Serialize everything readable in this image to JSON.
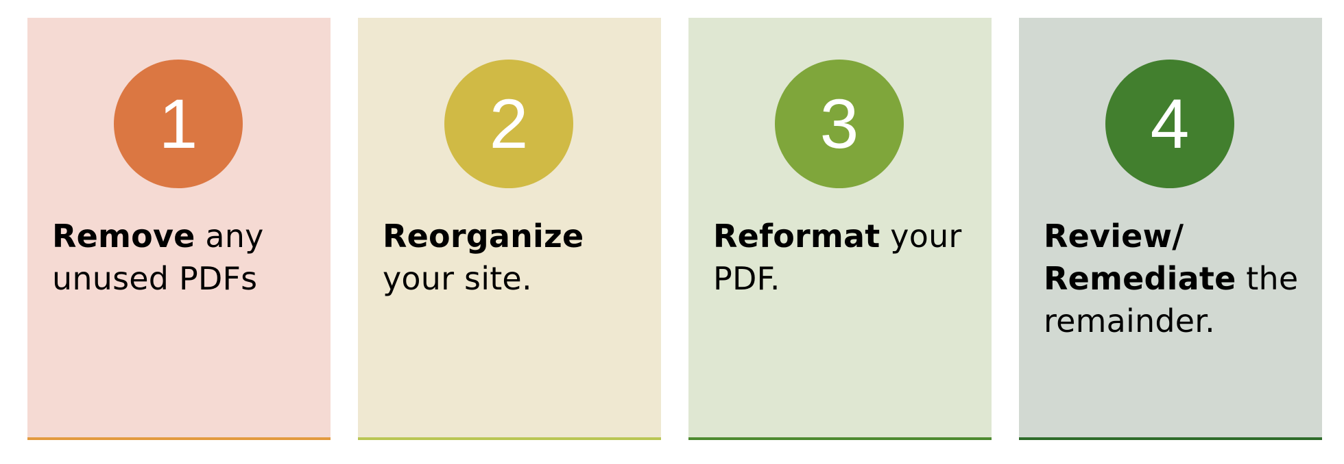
{
  "cards": [
    {
      "number": "1",
      "bold": "Remove",
      "rest": " any unused PDFs",
      "colors": {
        "background": "#F5DAD3",
        "badge": "#DB7742",
        "bar": "#E29A3F"
      }
    },
    {
      "number": "2",
      "bold": "Reorganize",
      "rest": " your site.",
      "colors": {
        "background": "#EFE8D1",
        "badge": "#D0BA45",
        "bar": "#B9C654"
      }
    },
    {
      "number": "3",
      "bold": "Reformat",
      "rest": " your PDF.",
      "colors": {
        "background": "#DFE7D2",
        "badge": "#7FA63B",
        "bar": "#4D8A30"
      }
    },
    {
      "number": "4",
      "bold": "Review/ Remediate",
      "rest": " the remainder.",
      "colors": {
        "background": "#D2D9D2",
        "badge": "#427F2E",
        "bar": "#2E6B2A"
      }
    }
  ]
}
